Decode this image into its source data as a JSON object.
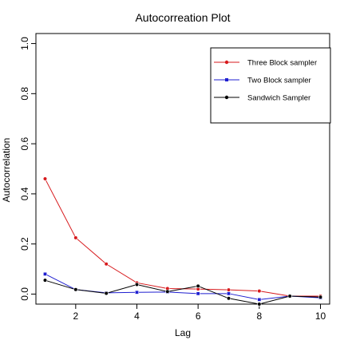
{
  "chart_data": {
    "type": "line",
    "title": "Autocorreation Plot",
    "xlabel": "Lag",
    "ylabel": "Autocorrelation",
    "xlim": [
      0.7,
      10.3
    ],
    "ylim": [
      -0.04,
      1.04
    ],
    "x_ticks": [
      2,
      4,
      6,
      8,
      10
    ],
    "y_ticks": [
      0.0,
      0.2,
      0.4,
      0.6,
      0.8,
      1.0
    ],
    "x_tick_labels": [
      "2",
      "4",
      "6",
      "8",
      "10"
    ],
    "y_tick_labels": [
      "0.0",
      "0.2",
      "0.4",
      "0.6",
      "0.8",
      "1.0"
    ],
    "legend_position": "top-right",
    "grid": false,
    "x": [
      1,
      2,
      3,
      4,
      5,
      6,
      7,
      8,
      9,
      10
    ],
    "series": [
      {
        "name": "Three Block sampler",
        "color": "#d7191c",
        "values": [
          0.46,
          0.225,
          0.12,
          0.045,
          0.022,
          0.02,
          0.017,
          0.012,
          -0.008,
          -0.008
        ]
      },
      {
        "name": "Two Block sampler",
        "color": "#1f1fd0",
        "values": [
          0.08,
          0.018,
          0.005,
          0.007,
          0.008,
          0.002,
          0.002,
          -0.022,
          -0.008,
          -0.015
        ]
      },
      {
        "name": "Sandwich Sampler",
        "color": "#000000",
        "values": [
          0.055,
          0.018,
          0.003,
          0.038,
          0.01,
          0.032,
          -0.017,
          -0.04,
          -0.008,
          -0.012
        ]
      }
    ]
  }
}
